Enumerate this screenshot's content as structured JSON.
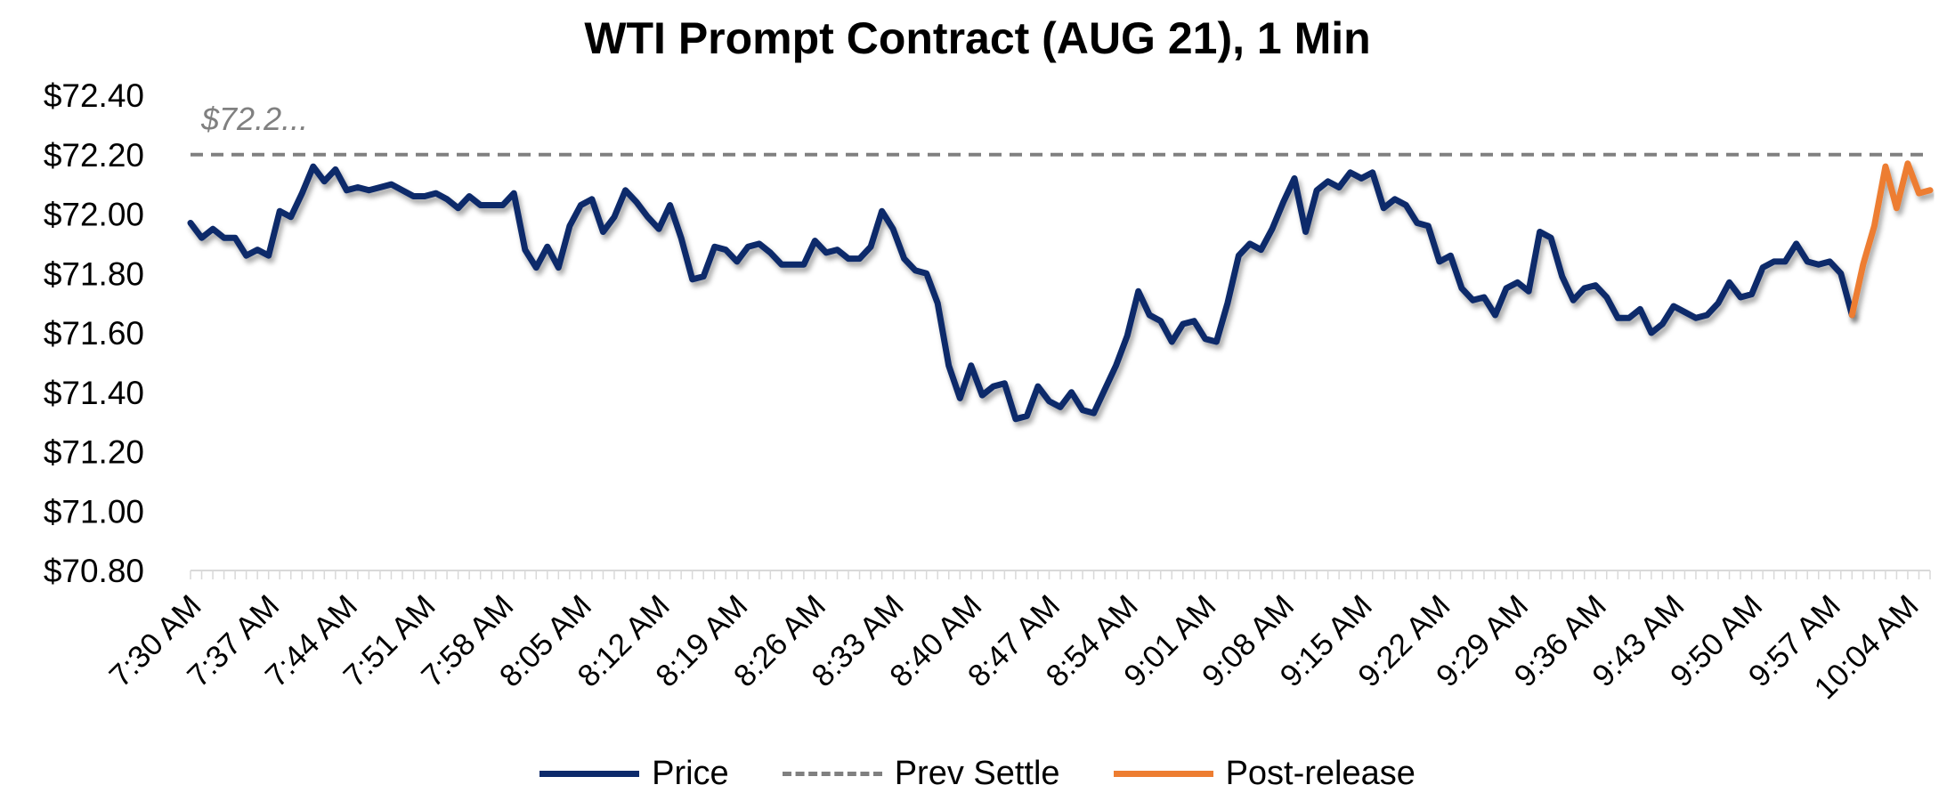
{
  "chart_data": {
    "type": "line",
    "title": "WTI Prompt Contract (AUG 21), 1 Min",
    "xlabel": "",
    "ylabel": "",
    "ylim": [
      70.8,
      72.4
    ],
    "ytick_values": [
      70.8,
      71.0,
      71.2,
      71.4,
      71.6,
      71.8,
      72.0,
      72.2,
      72.4
    ],
    "ytick_labels": [
      "$70.80",
      "$71.00",
      "$71.20",
      "$71.40",
      "$71.60",
      "$71.80",
      "$72.00",
      "$72.20",
      "$72.40"
    ],
    "x_range_minutes": [
      0,
      156
    ],
    "xtick_minutes": [
      0,
      7,
      14,
      21,
      28,
      35,
      42,
      49,
      56,
      63,
      70,
      77,
      84,
      91,
      98,
      105,
      112,
      119,
      126,
      133,
      140,
      147,
      154
    ],
    "xtick_labels": [
      "7:30 AM",
      "7:37 AM",
      "7:44 AM",
      "7:51 AM",
      "7:58 AM",
      "8:05 AM",
      "8:12 AM",
      "8:19 AM",
      "8:26 AM",
      "8:33 AM",
      "8:40 AM",
      "8:47 AM",
      "8:54 AM",
      "9:01 AM",
      "9:08 AM",
      "9:15 AM",
      "9:22 AM",
      "9:29 AM",
      "9:36 AM",
      "9:43 AM",
      "9:50 AM",
      "9:57 AM",
      "10:04 AM"
    ],
    "reference_line": {
      "name": "Prev Settle",
      "value": 72.2,
      "label": "$72.2...",
      "color": "#808080",
      "style": "dashed"
    },
    "series": [
      {
        "name": "Price",
        "color": "#0d2a6b",
        "start_minute": 0,
        "values": [
          71.97,
          71.92,
          71.95,
          71.92,
          71.92,
          71.86,
          71.88,
          71.86,
          72.01,
          71.99,
          72.07,
          72.16,
          72.11,
          72.15,
          72.08,
          72.09,
          72.08,
          72.09,
          72.1,
          72.08,
          72.06,
          72.06,
          72.07,
          72.05,
          72.02,
          72.06,
          72.03,
          72.03,
          72.03,
          72.07,
          71.88,
          71.82,
          71.89,
          71.82,
          71.96,
          72.03,
          72.05,
          71.94,
          71.99,
          72.08,
          72.04,
          71.99,
          71.95,
          72.03,
          71.92,
          71.78,
          71.79,
          71.89,
          71.88,
          71.84,
          71.89,
          71.9,
          71.87,
          71.83,
          71.83,
          71.83,
          71.91,
          71.87,
          71.88,
          71.85,
          71.85,
          71.89,
          72.01,
          71.95,
          71.85,
          71.81,
          71.8,
          71.7,
          71.49,
          71.38,
          71.49,
          71.39,
          71.42,
          71.43,
          71.31,
          71.32,
          71.42,
          71.37,
          71.35,
          71.4,
          71.34,
          71.33,
          71.41,
          71.49,
          71.59,
          71.74,
          71.66,
          71.64,
          71.57,
          71.63,
          71.64,
          71.58,
          71.57,
          71.7,
          71.86,
          71.9,
          71.88,
          71.95,
          72.04,
          72.12,
          71.94,
          72.08,
          72.11,
          72.09,
          72.14,
          72.12,
          72.14,
          72.02,
          72.05,
          72.03,
          71.97,
          71.96,
          71.84,
          71.86,
          71.75,
          71.71,
          71.72,
          71.66,
          71.75,
          71.77,
          71.74,
          71.94,
          71.92,
          71.79,
          71.71,
          71.75,
          71.76,
          71.72,
          71.65,
          71.65,
          71.68,
          71.6,
          71.63,
          71.69,
          71.67,
          71.65,
          71.66,
          71.7,
          71.77,
          71.72,
          71.73,
          71.82,
          71.84,
          71.84,
          71.9,
          71.84,
          71.83,
          71.84,
          71.8,
          71.66
        ]
      },
      {
        "name": "Post-release",
        "color": "#ed7d31",
        "start_minute": 149,
        "values": [
          71.66,
          71.83,
          71.96,
          72.16,
          72.02,
          72.17,
          72.07,
          72.08
        ]
      }
    ],
    "legend": [
      "Price",
      "Prev Settle",
      "Post-release"
    ],
    "legend_position": "bottom",
    "grid": false
  }
}
